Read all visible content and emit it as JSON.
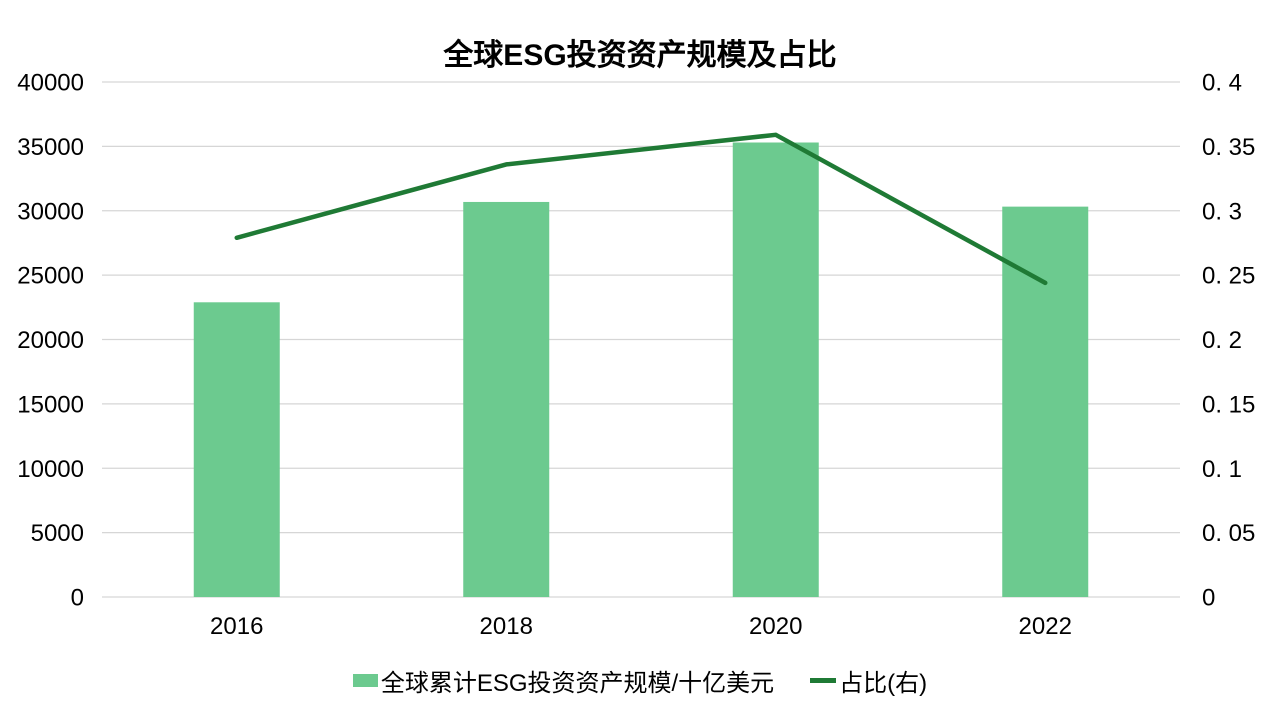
{
  "chart_data": {
    "type": "bar+line",
    "title": "全球ESG投资资产规模及占比",
    "categories": [
      "2016",
      "2018",
      "2020",
      "2022"
    ],
    "series": [
      {
        "name": "全球累计ESG投资资产规模/十亿美元",
        "type": "bar",
        "axis": "left",
        "values": [
          22890,
          30683,
          35301,
          30320
        ],
        "color": "#6cca8f"
      },
      {
        "name": "占比(右)",
        "type": "line",
        "axis": "right",
        "values": [
          0.279,
          0.336,
          0.359,
          0.244
        ],
        "color": "#1f7a35"
      }
    ],
    "left_axis": {
      "min": 0,
      "max": 40000,
      "step": 5000,
      "tick_labels": [
        "40000",
        "35000",
        "30000",
        "25000",
        "20000",
        "15000",
        "10000",
        "5000",
        "0"
      ]
    },
    "right_axis": {
      "min": 0,
      "max": 0.4,
      "step": 0.05,
      "tick_labels": [
        "0. 4",
        "0. 35",
        "0. 3",
        "0. 25",
        "0. 2",
        "0. 15",
        "0. 1",
        "0. 05",
        "0"
      ]
    },
    "grid": true,
    "legend_position": "bottom",
    "colors": {
      "bar": "#6cca8f",
      "line": "#1f7a35",
      "grid": "#d6d6d6",
      "text": "#000000",
      "background": "#ffffff"
    }
  }
}
